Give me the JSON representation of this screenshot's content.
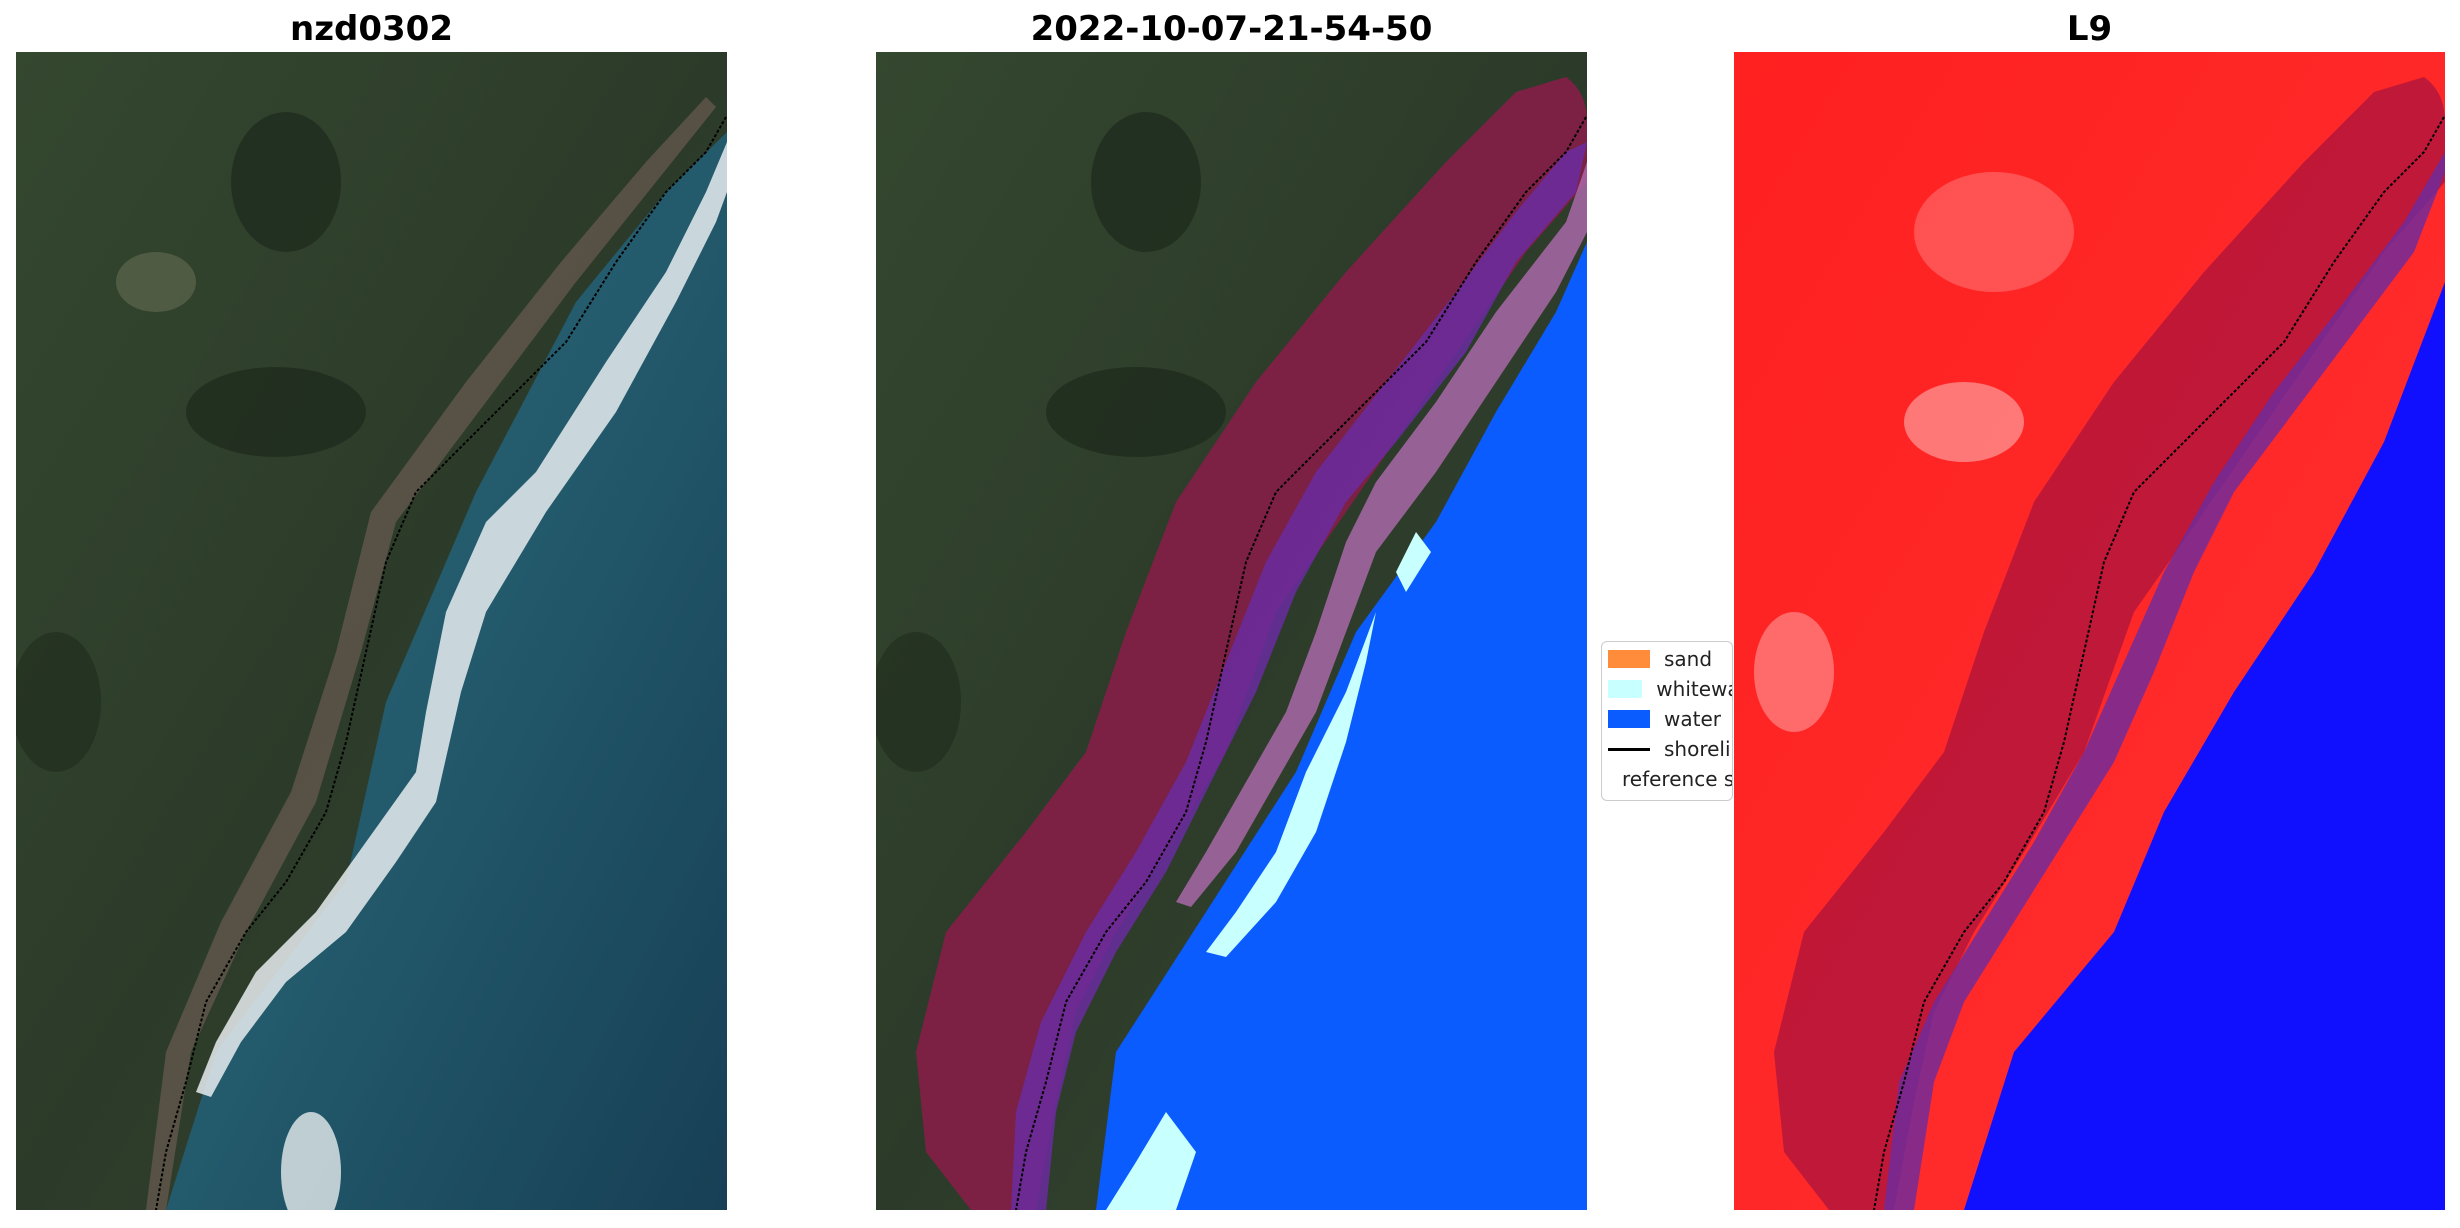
{
  "panels": [
    {
      "title": "nzd0302",
      "content": "RGB satellite image with detected shoreline"
    },
    {
      "title": "2022-10-07-21-54-50",
      "content": "Classified image"
    },
    {
      "title": "L9",
      "content": "MNDWI image"
    }
  ],
  "legend": {
    "items": [
      {
        "label": "sand",
        "color": "#ff8c3a",
        "kind": "patch"
      },
      {
        "label": "whitewater",
        "color": "#c8ffff",
        "kind": "patch"
      },
      {
        "label": "water",
        "color": "#0a5cff",
        "kind": "patch"
      },
      {
        "label": "shoreline",
        "color": "#000000",
        "kind": "line"
      },
      {
        "label": "reference shoreline buffer",
        "color": "#a32828",
        "kind": "patch"
      }
    ]
  },
  "colors": {
    "land": "#2f3f2c",
    "sea": "#1f5670",
    "surf": "#e8eef0",
    "buffer": "#8b1c49",
    "water_class": "#0a5cff",
    "whitewater_class": "#c8ffff",
    "mndwi_land": "#ff1a1a",
    "mndwi_water": "#1010ff"
  }
}
